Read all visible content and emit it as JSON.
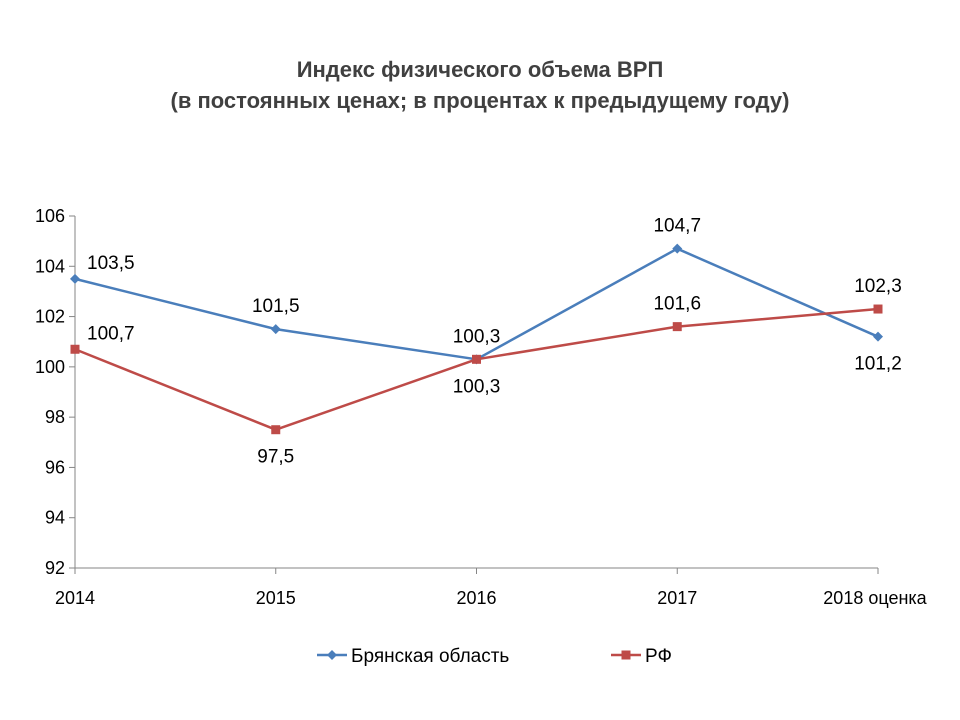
{
  "chart_data": {
    "type": "line",
    "title": "Индекс физического объема ВРП",
    "subtitle": "(в постоянных ценах; в процентах к предыдущему году)",
    "categories": [
      "2014",
      "2015",
      "2016",
      "2017",
      "2018 оценка"
    ],
    "ylim": [
      92,
      106
    ],
    "yticks": [
      92,
      94,
      96,
      98,
      100,
      102,
      104,
      106
    ],
    "ytick_labels": [
      "92",
      "94",
      "96",
      "98",
      "100",
      "102",
      "104",
      "106"
    ],
    "grid": false,
    "legend_position": "bottom",
    "series": [
      {
        "name": "Брянская область",
        "color": "#4A7EBB",
        "marker": "diamond",
        "values": [
          103.5,
          101.5,
          100.3,
          104.7,
          101.2
        ],
        "labels": [
          "103,5",
          "101,5",
          "100,3",
          "104,7",
          "101,2"
        ],
        "label_positions": [
          "right",
          "above",
          "above",
          "above",
          "below"
        ]
      },
      {
        "name": "РФ",
        "color": "#BE4B48",
        "marker": "square",
        "values": [
          100.7,
          97.5,
          100.3,
          101.6,
          102.3
        ],
        "labels": [
          "100,7",
          "97,5",
          "100,3",
          "101,6",
          "102,3"
        ],
        "label_positions": [
          "right",
          "below",
          "below",
          "above",
          "above"
        ]
      }
    ]
  }
}
